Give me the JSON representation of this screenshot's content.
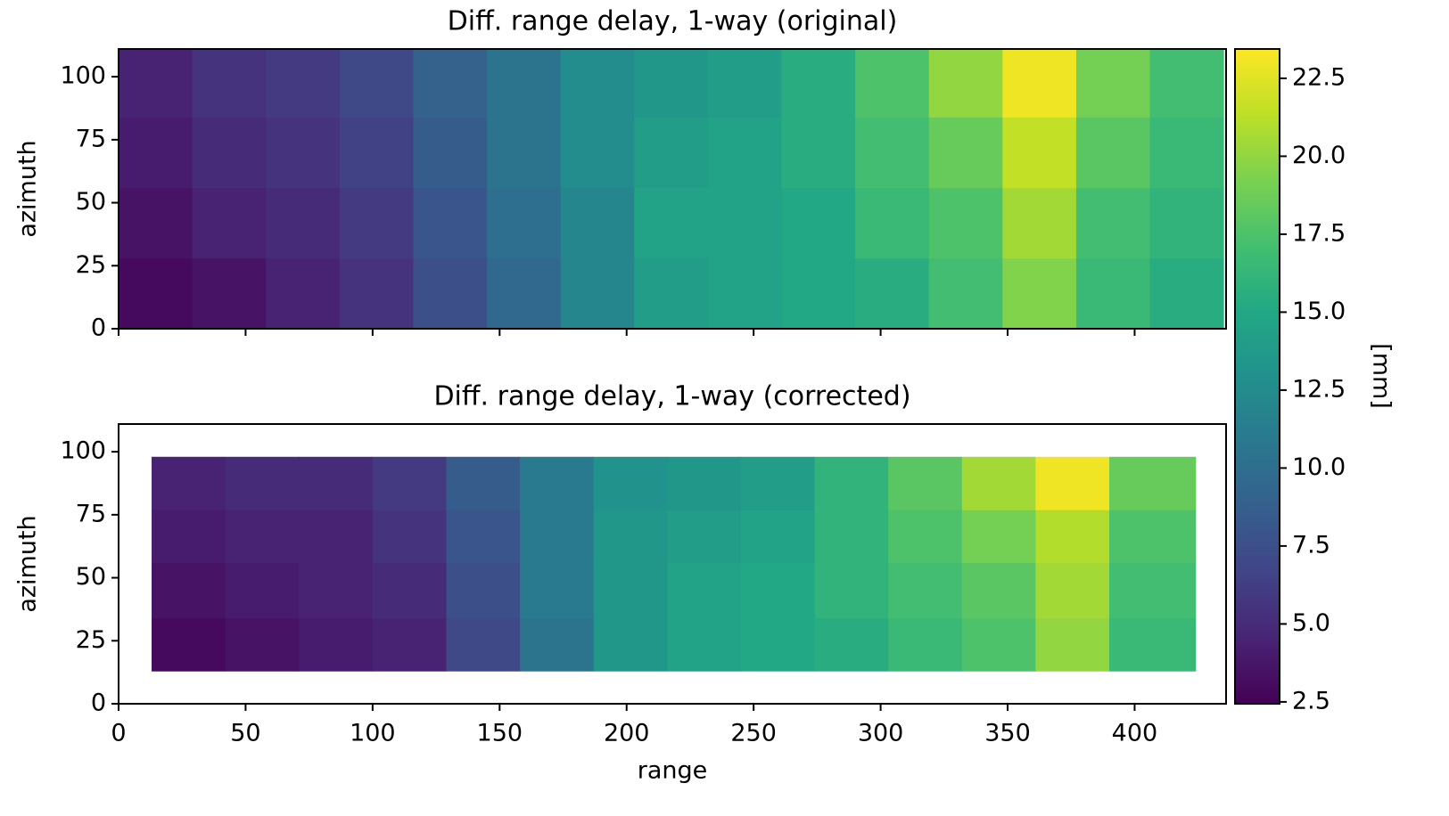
{
  "chart_data": [
    {
      "type": "heatmap",
      "title": "Diff. range delay, 1-way (original)",
      "ylabel": "azimuth",
      "colormap": "viridis",
      "show_xticklabels": false,
      "xlim": [
        0,
        436
      ],
      "ylim": [
        0,
        111
      ],
      "xticks": [
        0,
        50,
        100,
        150,
        200,
        250,
        300,
        350,
        400
      ],
      "yticks": [
        0,
        25,
        50,
        75,
        100
      ],
      "x_edges": [
        0,
        29,
        58,
        87,
        116,
        145,
        174,
        203,
        232,
        261,
        290,
        319,
        348,
        377,
        406,
        435
      ],
      "y_edges": [
        0,
        28,
        56,
        84,
        111
      ],
      "values": [
        [
          3,
          3.5,
          4.5,
          5.5,
          7.5,
          9.5,
          12,
          14,
          14.5,
          15,
          15.5,
          17,
          19.5,
          16.5,
          15.5
        ],
        [
          3.5,
          4.5,
          5,
          6,
          8,
          10,
          12,
          14.5,
          14.5,
          15,
          16.5,
          17.5,
          20.5,
          17,
          16
        ],
        [
          4,
          5,
          5.5,
          6.5,
          8.5,
          10.5,
          12.5,
          14,
          14.5,
          15.5,
          17,
          18.5,
          21.5,
          18,
          16.5
        ],
        [
          4.5,
          5.5,
          6,
          7,
          9,
          10.5,
          12.5,
          13.5,
          14,
          15.5,
          17.5,
          20,
          23,
          19,
          17
        ]
      ]
    },
    {
      "type": "heatmap",
      "title": "Diff. range delay, 1-way (corrected)",
      "ylabel": "azimuth",
      "xlabel": "range",
      "colormap": "viridis",
      "show_xticklabels": true,
      "xlim": [
        0,
        436
      ],
      "ylim": [
        0,
        111
      ],
      "xticks": [
        0,
        50,
        100,
        150,
        200,
        250,
        300,
        350,
        400
      ],
      "yticks": [
        0,
        25,
        50,
        75,
        100
      ],
      "x_edges": [
        13,
        42,
        71,
        100,
        129,
        158,
        187,
        216,
        245,
        274,
        303,
        332,
        361,
        390,
        424
      ],
      "y_edges": [
        13,
        34,
        56,
        77,
        98
      ],
      "values": [
        [
          3,
          3.5,
          4,
          4.5,
          7,
          10.5,
          13.5,
          14.5,
          15,
          15.5,
          16.5,
          17.5,
          20,
          16.5
        ],
        [
          3.5,
          4,
          4.5,
          5,
          7.5,
          11,
          13.5,
          14.5,
          15,
          16,
          17,
          18,
          20.5,
          17
        ],
        [
          4,
          4.5,
          4.5,
          5.5,
          8,
          11,
          13.5,
          14,
          14.5,
          16,
          17.5,
          19,
          21,
          17.5
        ],
        [
          4.5,
          5,
          5,
          6,
          8.5,
          11,
          13,
          13.5,
          14,
          16,
          18,
          20.5,
          23,
          18.5
        ]
      ]
    }
  ],
  "colorbar": {
    "label": "[mm]",
    "clim": [
      2.44,
      23.44
    ],
    "ticks": [
      2.5,
      {
        "value": 5,
        "label": "5.0"
      },
      7.5,
      {
        "value": 10,
        "label": "10.0"
      },
      12.5,
      {
        "value": 15,
        "label": "15.0"
      },
      17.5,
      {
        "value": 20,
        "label": "20.0"
      },
      22.5
    ]
  }
}
